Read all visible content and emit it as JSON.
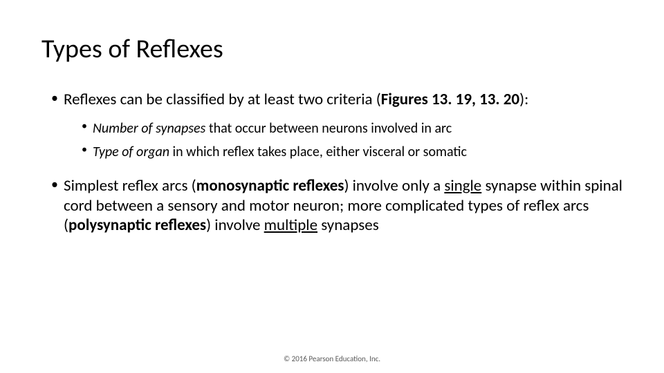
{
  "title": "Types of Reflexes",
  "bullets": {
    "b1_prefix": "Reflexes can be classified by at least two criteria (",
    "b1_bold": "Figures 13. 19, 13. 20",
    "b1_suffix": "):",
    "b1a_italic": "Number of synapses",
    "b1a_rest": " that occur between neurons involved in arc",
    "b1b_italic": "Type of organ",
    "b1b_rest": " in which reflex takes place, either visceral or somatic",
    "b2_p1": "Simplest reflex arcs (",
    "b2_bold1": "monosynaptic reflexes",
    "b2_p2": ") involve only a ",
    "b2_u1": "single",
    "b2_p3": " synapse within spinal cord between a sensory and motor neuron; more complicated types of reflex arcs (",
    "b2_bold2": "polysynaptic reflexes",
    "b2_p4": ") involve ",
    "b2_u2": "multiple",
    "b2_p5": " synapses"
  },
  "copyright": "© 2016 Pearson Education, Inc."
}
